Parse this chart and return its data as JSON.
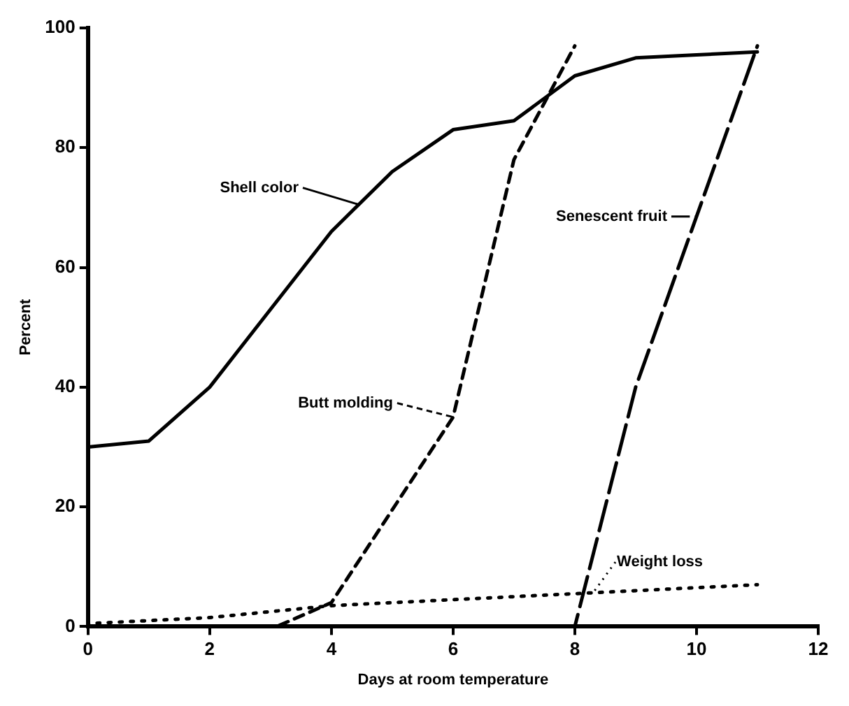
{
  "chart_data": {
    "type": "line",
    "xlabel": "Days at room temperature",
    "ylabel": "Percent",
    "xlim": [
      0,
      12
    ],
    "xticks": [
      0,
      2,
      4,
      6,
      8,
      10,
      12
    ],
    "ylim": [
      0,
      100
    ],
    "yticks": [
      0,
      20,
      40,
      60,
      80,
      100
    ],
    "grid": false,
    "legend": "center",
    "marker": "none",
    "series": [
      {
        "name": "Shell color",
        "color": "#000000",
        "line_style": "solid",
        "x": [
          0,
          1,
          2,
          3,
          4,
          5,
          6,
          7,
          8,
          9,
          10,
          11
        ],
        "values": [
          30,
          31,
          40,
          53,
          66,
          76,
          83,
          84.5,
          92,
          95,
          95.5,
          96
        ]
      },
      {
        "name": "Butt molding",
        "color": "#000000",
        "line_style": "dashed",
        "x": [
          3.1,
          4,
          6,
          7,
          8
        ],
        "values": [
          0,
          4,
          35,
          78,
          97
        ]
      },
      {
        "name": "Senescent fruit",
        "color": "#000000",
        "line_style": "longdash",
        "x": [
          8,
          9,
          11
        ],
        "values": [
          0,
          40,
          97
        ]
      },
      {
        "name": "Weight loss",
        "color": "#000000",
        "line_style": "dotted",
        "x": [
          0,
          2,
          4,
          6,
          8,
          11
        ],
        "values": [
          0.5,
          1.5,
          3.5,
          4.5,
          5.5,
          7
        ]
      }
    ]
  }
}
